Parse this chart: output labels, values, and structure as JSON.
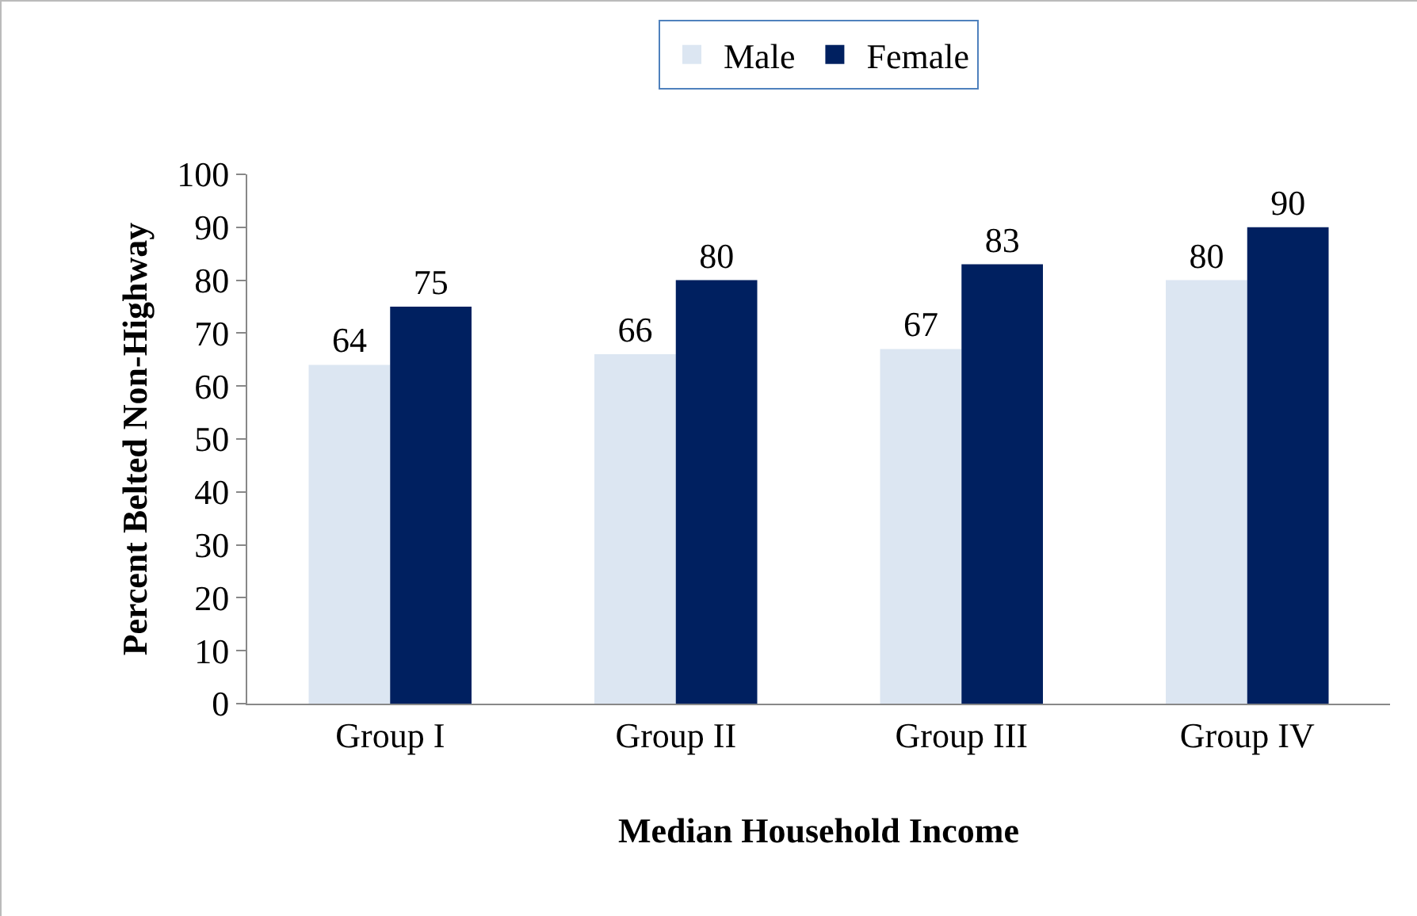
{
  "chart_data": {
    "type": "bar",
    "xlabel": "Median Household Income",
    "ylabel": "Percent Belted Non-Highway",
    "categories": [
      "Group I",
      "Group II",
      "Group III",
      "Group IV"
    ],
    "series": [
      {
        "name": "Male",
        "color": "#dce6f2",
        "values": [
          64,
          66,
          67,
          80
        ]
      },
      {
        "name": "Female",
        "color": "#002060",
        "values": [
          75,
          80,
          83,
          90
        ]
      }
    ],
    "ylim": [
      0,
      100
    ],
    "yticks": [
      0,
      10,
      20,
      30,
      40,
      50,
      60,
      70,
      80,
      90,
      100
    ],
    "grid": false,
    "legend": "top",
    "data_labels": true
  }
}
